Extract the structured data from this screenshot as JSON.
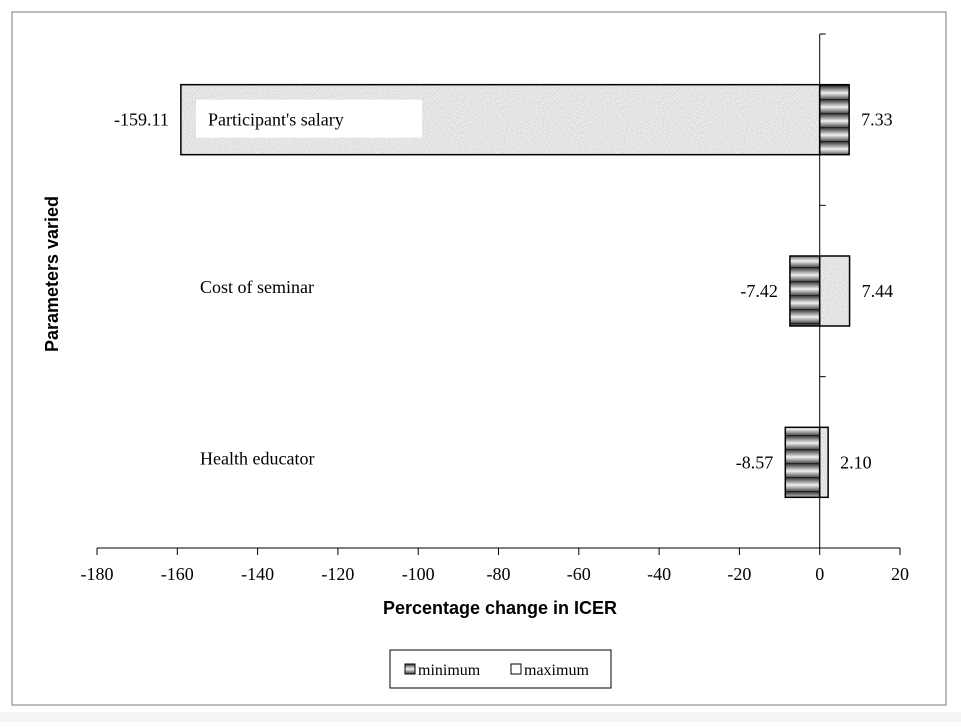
{
  "chart_data": {
    "type": "bar",
    "orientation": "horizontal",
    "title": "",
    "xlabel": "Percentage change in ICER",
    "ylabel": "Parameters varied",
    "xlim": [
      -180,
      20
    ],
    "xticks": [
      -180,
      -160,
      -140,
      -120,
      -100,
      -80,
      -60,
      -40,
      -20,
      0,
      20
    ],
    "categories": [
      "Participant's salary",
      "Cost of seminar",
      "Health educator"
    ],
    "series": [
      {
        "name": "minimum",
        "values": [
          -159.11,
          -7.42,
          -8.57
        ],
        "labels": [
          "-159.11",
          "-7.42",
          "-8.57"
        ],
        "pattern": "dark-gradient"
      },
      {
        "name": "maximum",
        "values": [
          7.33,
          7.44,
          2.1
        ],
        "labels": [
          "7.33",
          "7.44",
          "2.10"
        ],
        "pattern": "light-speckle"
      }
    ],
    "bar_patterns": [
      [
        "light-speckle",
        "dark-gradient"
      ],
      [
        "dark-gradient",
        "light-speckle"
      ],
      [
        "dark-gradient",
        "light-speckle"
      ]
    ],
    "legend_position": "bottom-center",
    "grid": false,
    "colors": {
      "bar_stroke": "#000000",
      "dark_band": "#4a4a4a",
      "light_band": "#e8e8e8",
      "speckle_base": "#eeeeee"
    }
  }
}
